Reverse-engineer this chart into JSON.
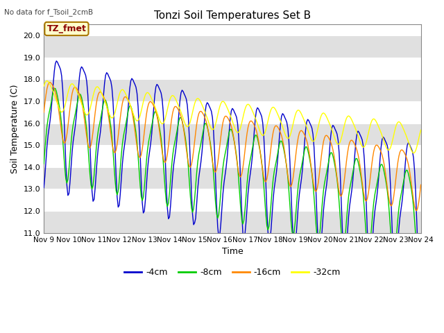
{
  "title": "Tonzi Soil Temperatures Set B",
  "xlabel": "Time",
  "ylabel": "Soil Temperature (C)",
  "note": "No data for f_Tsoil_2cmB",
  "legend_label": "TZ_fmet",
  "ylim": [
    11.0,
    20.5
  ],
  "yticks": [
    11.0,
    12.0,
    13.0,
    14.0,
    15.0,
    16.0,
    17.0,
    18.0,
    19.0,
    20.0
  ],
  "colors": {
    "4cm": "#0000cc",
    "8cm": "#00cc00",
    "16cm": "#ff8800",
    "32cm": "#ffff00"
  },
  "fig_bg": "#ffffff",
  "band_light": "#ffffff",
  "band_dark": "#e0e0e0",
  "xtick_days": [
    9,
    10,
    11,
    12,
    13,
    14,
    15,
    16,
    17,
    18,
    19,
    20,
    21,
    22,
    23,
    24
  ]
}
